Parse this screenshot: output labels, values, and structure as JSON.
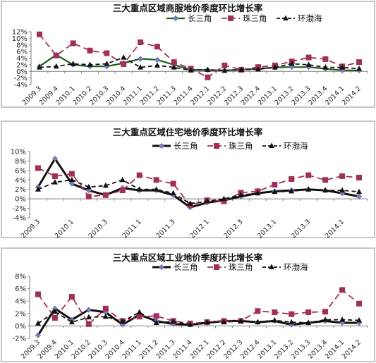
{
  "chart_data": [
    {
      "type": "line",
      "title": "三大重点区域商服地价季度环比增长率",
      "categories": [
        "2009.3",
        "2009.4",
        "2010.1",
        "2010.2",
        "2010.3",
        "2010.4",
        "2011.1",
        "2011.2",
        "2011.3",
        "2011.4",
        "2012.1",
        "2012.2",
        "2012.3",
        "2012.4",
        "2013.1",
        "2013.2",
        "2013.3",
        "2013.4",
        "2014.1",
        "2014.2"
      ],
      "x_tick_labels": [
        "2009.3",
        "2009.4",
        "2010.1",
        "2010.2",
        "2010.3",
        "2010.4",
        "2011.1",
        "2011.2",
        "2011.3",
        "2011.4",
        "2012.1",
        "2012.2",
        "2012.3",
        "2012.4",
        "2013.1",
        "2013.2",
        "2013.3",
        "2013.4",
        "2014.1",
        "2014.2"
      ],
      "y_tick_labels": [
        "-4%",
        "-2%",
        "0%",
        "2%",
        "4%",
        "6%",
        "8%",
        "10%",
        "12%"
      ],
      "ylim": [
        -4,
        12
      ],
      "y_step": 2,
      "legend_position": "top",
      "series": [
        {
          "name": "长三角",
          "values": [
            1.5,
            5.0,
            2.0,
            1.5,
            1.5,
            2.5,
            3.8,
            3.5,
            2.0,
            0.5,
            0.4,
            0.3,
            0.5,
            0.8,
            1.2,
            1.3,
            1.3,
            0.8,
            0.3,
            0.3
          ],
          "color": "#1e5c20",
          "marker": "diamond",
          "dash": "solid"
        },
        {
          "name": "珠三角",
          "values": [
            11.2,
            4.8,
            8.5,
            6.3,
            5.5,
            2.2,
            8.8,
            7.5,
            2.8,
            0.8,
            -1.8,
            1.8,
            0.5,
            1.3,
            1.8,
            3.0,
            4.2,
            3.7,
            1.5,
            2.8
          ],
          "color": "#a0305a",
          "marker": "square",
          "dash": "dash"
        },
        {
          "name": "环渤海",
          "values": [
            1.2,
            1.5,
            2.3,
            2.0,
            2.3,
            4.2,
            1.2,
            1.8,
            1.2,
            0.3,
            0.5,
            0.2,
            0.5,
            0.6,
            1.2,
            2.3,
            2.0,
            1.2,
            1.2,
            0.8
          ],
          "color": "#111111",
          "marker": "triangle",
          "dash": "dash"
        }
      ]
    },
    {
      "type": "line",
      "title": "三大重点区域住宅地价季度环比增长率",
      "categories": [
        "2009.3",
        "2009.4",
        "2010.1",
        "2010.2",
        "2010.3",
        "2010.4",
        "2011.1",
        "2011.2",
        "2011.3",
        "2011.4",
        "2012.1",
        "2012.2",
        "2012.3",
        "2012.4",
        "2013.1",
        "2013.2",
        "2013.3",
        "2013.4",
        "2014.1",
        "2014.2"
      ],
      "x_tick_labels": [
        "2009.3",
        "",
        "2010.1",
        "",
        "2010.3",
        "",
        "2011.1",
        "",
        "2011.3",
        "",
        "2012.1",
        "",
        "2012.3",
        "",
        "2013.1",
        "",
        "2013.3",
        "",
        "2014.1",
        ""
      ],
      "y_tick_labels": [
        "-4%",
        "-2%",
        "0%",
        "2%",
        "4%",
        "6%",
        "8%",
        "10%"
      ],
      "ylim": [
        -4,
        10
      ],
      "y_step": 2,
      "legend_position": "top",
      "series": [
        {
          "name": "长三角",
          "values": [
            2.5,
            8.5,
            3.2,
            1.8,
            0.8,
            2.3,
            1.8,
            1.8,
            0.8,
            -1.8,
            -0.8,
            -0.3,
            0.5,
            1.2,
            1.6,
            1.8,
            2.0,
            1.8,
            1.2,
            0.5
          ],
          "color": "#111111",
          "marker": "diamond",
          "dash": "solid",
          "width": 3
        },
        {
          "name": "珠三角",
          "values": [
            6.5,
            4.8,
            5.3,
            0.5,
            0.8,
            1.8,
            5.0,
            4.0,
            3.2,
            -1.3,
            -0.3,
            -0.5,
            1.3,
            1.6,
            3.0,
            4.2,
            5.0,
            4.0,
            4.8,
            4.5
          ],
          "color": "#a0305a",
          "marker": "square",
          "dash": "dash"
        },
        {
          "name": "环渤海",
          "values": [
            2.0,
            3.5,
            4.0,
            2.5,
            2.8,
            4.0,
            2.0,
            2.0,
            1.2,
            -1.0,
            -0.5,
            0.0,
            0.8,
            1.2,
            1.5,
            1.6,
            2.0,
            1.8,
            1.8,
            1.5
          ],
          "color": "#111111",
          "marker": "triangle",
          "dash": "dash"
        }
      ]
    },
    {
      "type": "line",
      "title": "三大重点区域工业地价季度环比增长率",
      "categories": [
        "2009.3",
        "2009.4",
        "2010.1",
        "2010.2",
        "2010.3",
        "2010.4",
        "2011.1",
        "2011.2",
        "2011.3",
        "2011.4",
        "2012.1",
        "2012.2",
        "2012.3",
        "2012.4",
        "2013.1",
        "2013.2",
        "2013.3",
        "2013.4",
        "2014.1",
        "2014.2"
      ],
      "x_tick_labels": [
        "2009.3",
        "2009.4",
        "2010.1",
        "2010.2",
        "2010.3",
        "2010.4",
        "2011.1",
        "2011.2",
        "2011.3",
        "2011.4",
        "2012.1",
        "2012.2",
        "2012.3",
        "2012.4",
        "2013.1",
        "2013.2",
        "2013.3",
        "2013.4",
        "2014.1",
        "2014.2"
      ],
      "y_tick_labels": [
        "-2%",
        "0%",
        "2%",
        "4%",
        "6%",
        "8%"
      ],
      "ylim": [
        -2,
        8
      ],
      "y_step": 2,
      "legend_position": "top",
      "series": [
        {
          "name": "长三角",
          "values": [
            -1.5,
            2.8,
            1.0,
            2.6,
            2.2,
            0.2,
            1.8,
            0.8,
            0.3,
            0.2,
            0.5,
            0.8,
            0.8,
            0.6,
            0.8,
            0.2,
            0.5,
            0.8,
            0.5,
            0.5
          ],
          "color": "#111111",
          "marker": "diamond",
          "dash": "solid",
          "width": 3
        },
        {
          "name": "珠三角",
          "values": [
            5.1,
            1.3,
            4.7,
            0.3,
            2.8,
            0.8,
            1.5,
            1.6,
            0.8,
            0.4,
            0.6,
            0.8,
            0.8,
            2.4,
            2.2,
            1.9,
            2.2,
            2.3,
            5.8,
            3.6
          ],
          "color": "#a0305a",
          "marker": "square",
          "dash": "dash"
        },
        {
          "name": "环渤海",
          "values": [
            0.4,
            2.3,
            0.6,
            1.4,
            1.5,
            0.7,
            2.2,
            0.5,
            0.7,
            0.2,
            0.6,
            0.6,
            0.8,
            0.6,
            0.9,
            0.6,
            0.5,
            1.0,
            1.0,
            0.9
          ],
          "color": "#111111",
          "marker": "triangle",
          "dash": "dash"
        }
      ]
    }
  ]
}
